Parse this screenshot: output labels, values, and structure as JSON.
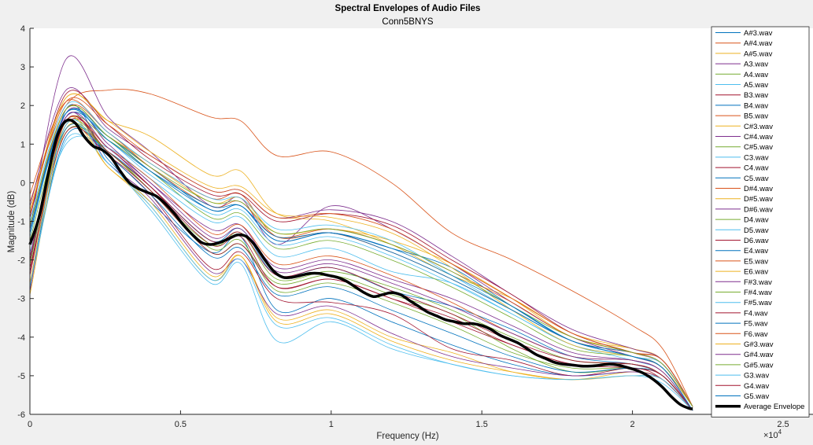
{
  "chart_data": {
    "type": "line",
    "title": "Spectral Envelopes of Audio Files",
    "subtitle": "Conn5BNYS",
    "xlabel": "Frequency (Hz)",
    "ylabel": "Magnitude (dB)",
    "xlim": [
      0,
      25000
    ],
    "ylim": [
      -6,
      4
    ],
    "x_exponent_label": "×10",
    "x_exponent_power": "4",
    "x_tick_labels": [
      "0",
      "0.5",
      "1",
      "1.5",
      "2",
      "2.5"
    ],
    "y_tick_labels": [
      "4",
      "3",
      "2",
      "1",
      "0",
      "-1",
      "-2",
      "-3",
      "-4",
      "-5",
      "-6"
    ],
    "grid": false,
    "legend_position": "right",
    "x": [
      0,
      1200,
      2600,
      4000,
      6000,
      7000,
      8200,
      10000,
      12000,
      14000,
      16000,
      18000,
      20000,
      21000,
      22000
    ],
    "series": [
      {
        "name": "A#3.wav",
        "color": "#0072bd",
        "values": [
          -2.8,
          1.9,
          0.6,
          -0.5,
          -1.8,
          -1.4,
          -3.3,
          -3.0,
          -3.6,
          -4.2,
          -4.7,
          -5.0,
          -4.9,
          -5.1,
          -5.9
        ]
      },
      {
        "name": "A#4.wav",
        "color": "#d95319",
        "values": [
          -0.5,
          2.0,
          2.4,
          2.3,
          1.7,
          1.6,
          0.7,
          0.8,
          0.0,
          -1.3,
          -2.0,
          -2.8,
          -3.7,
          -4.3,
          -5.8
        ]
      },
      {
        "name": "A#5.wav",
        "color": "#edb120",
        "values": [
          -0.8,
          2.2,
          1.6,
          1.2,
          0.2,
          0.3,
          -0.8,
          -1.0,
          -1.6,
          -2.4,
          -3.0,
          -3.9,
          -4.3,
          -4.6,
          -5.8
        ]
      },
      {
        "name": "A3.wav",
        "color": "#7e2f8e",
        "values": [
          -1.2,
          3.2,
          1.7,
          0.8,
          -0.6,
          -0.4,
          -1.6,
          -0.6,
          -1.2,
          -2.1,
          -3.1,
          -4.0,
          -4.5,
          -4.8,
          -5.8
        ]
      },
      {
        "name": "A4.wav",
        "color": "#77ac30",
        "values": [
          -2.0,
          1.4,
          0.8,
          -0.2,
          -1.8,
          -1.6,
          -2.6,
          -2.4,
          -2.9,
          -3.4,
          -4.3,
          -4.9,
          -4.8,
          -5.0,
          -5.9
        ]
      },
      {
        "name": "A5.wav",
        "color": "#4dbeee",
        "values": [
          -1.8,
          1.0,
          0.9,
          0.1,
          -1.0,
          -0.9,
          -1.9,
          -1.7,
          -2.3,
          -2.6,
          -3.4,
          -4.2,
          -4.6,
          -4.9,
          -5.9
        ]
      },
      {
        "name": "B3.wav",
        "color": "#a2142f",
        "values": [
          -2.4,
          1.6,
          0.7,
          -0.3,
          -2.2,
          -1.8,
          -3.0,
          -3.1,
          -3.4,
          -4.3,
          -4.6,
          -5.0,
          -4.8,
          -5.1,
          -5.9
        ]
      },
      {
        "name": "B4.wav",
        "color": "#0072bd",
        "values": [
          -2.6,
          1.2,
          0.8,
          -0.1,
          -1.5,
          -1.2,
          -2.4,
          -2.2,
          -2.8,
          -3.2,
          -3.8,
          -4.5,
          -4.7,
          -5.0,
          -5.9
        ]
      },
      {
        "name": "B5.wav",
        "color": "#d95319",
        "values": [
          -0.3,
          2.1,
          1.3,
          0.5,
          -0.4,
          -0.3,
          -1.4,
          -1.3,
          -1.8,
          -2.5,
          -3.3,
          -4.1,
          -4.4,
          -4.6,
          -5.8
        ]
      },
      {
        "name": "C#3.wav",
        "color": "#edb120",
        "values": [
          -2.9,
          1.4,
          0.4,
          -0.6,
          -2.5,
          -1.9,
          -3.5,
          -3.3,
          -4.0,
          -4.4,
          -4.9,
          -5.1,
          -4.9,
          -5.1,
          -5.9
        ]
      },
      {
        "name": "C#4.wav",
        "color": "#7e2f8e",
        "values": [
          -2.1,
          1.8,
          1.0,
          0.0,
          -1.2,
          -1.1,
          -2.2,
          -2.0,
          -2.5,
          -3.0,
          -3.7,
          -4.4,
          -4.6,
          -4.9,
          -5.9
        ]
      },
      {
        "name": "C#5.wav",
        "color": "#77ac30",
        "values": [
          -1.5,
          1.6,
          1.1,
          0.3,
          -0.9,
          -0.8,
          -1.7,
          -1.5,
          -2.0,
          -2.7,
          -3.5,
          -4.3,
          -4.5,
          -4.8,
          -5.9
        ]
      },
      {
        "name": "C3.wav",
        "color": "#4dbeee",
        "values": [
          -2.7,
          1.1,
          0.5,
          -0.7,
          -2.6,
          -2.1,
          -4.1,
          -3.6,
          -4.3,
          -4.7,
          -5.0,
          -5.1,
          -5.0,
          -5.2,
          -5.9
        ]
      },
      {
        "name": "C4.wav",
        "color": "#a2142f",
        "values": [
          -2.3,
          1.5,
          0.9,
          -0.1,
          -1.6,
          -1.4,
          -2.7,
          -2.5,
          -3.0,
          -3.6,
          -4.2,
          -4.7,
          -4.7,
          -5.0,
          -5.9
        ]
      },
      {
        "name": "C5.wav",
        "color": "#0072bd",
        "values": [
          -1.3,
          1.7,
          1.2,
          0.4,
          -0.7,
          -0.6,
          -1.5,
          -1.3,
          -1.7,
          -2.2,
          -3.2,
          -4.1,
          -4.4,
          -4.7,
          -5.8
        ]
      },
      {
        "name": "D#4.wav",
        "color": "#d95319",
        "values": [
          -1.9,
          1.6,
          0.9,
          0.1,
          -1.3,
          -1.1,
          -2.1,
          -1.9,
          -2.4,
          -3.1,
          -3.9,
          -4.5,
          -4.6,
          -4.9,
          -5.9
        ]
      },
      {
        "name": "D#5.wav",
        "color": "#edb120",
        "values": [
          -1.1,
          1.9,
          1.2,
          0.5,
          -0.5,
          -0.4,
          -1.3,
          -1.2,
          -1.5,
          -2.1,
          -3.0,
          -4.0,
          -4.3,
          -4.6,
          -5.8
        ]
      },
      {
        "name": "D#6.wav",
        "color": "#7e2f8e",
        "values": [
          -0.6,
          2.4,
          1.4,
          0.7,
          -0.2,
          -0.2,
          -0.9,
          -0.7,
          -1.0,
          -1.9,
          -2.9,
          -3.8,
          -4.3,
          -4.6,
          -5.8
        ]
      },
      {
        "name": "D4.wav",
        "color": "#77ac30",
        "values": [
          -2.2,
          1.3,
          0.8,
          -0.2,
          -1.7,
          -1.5,
          -2.8,
          -2.6,
          -3.1,
          -3.7,
          -4.4,
          -4.8,
          -4.8,
          -5.0,
          -5.9
        ]
      },
      {
        "name": "D5.wav",
        "color": "#4dbeee",
        "values": [
          -1.4,
          1.8,
          1.1,
          0.2,
          -0.8,
          -0.7,
          -1.6,
          -1.4,
          -1.9,
          -2.6,
          -3.4,
          -4.2,
          -4.5,
          -4.8,
          -5.9
        ]
      },
      {
        "name": "D6.wav",
        "color": "#a2142f",
        "values": [
          -0.9,
          2.3,
          1.5,
          0.6,
          -0.3,
          -0.3,
          -1.0,
          -0.8,
          -1.1,
          -2.0,
          -2.9,
          -3.9,
          -4.4,
          -4.7,
          -5.8
        ]
      },
      {
        "name": "E4.wav",
        "color": "#0072bd",
        "values": [
          -2.0,
          1.4,
          0.7,
          -0.3,
          -1.9,
          -1.7,
          -2.9,
          -2.7,
          -3.3,
          -3.9,
          -4.5,
          -4.9,
          -4.8,
          -5.0,
          -5.9
        ]
      },
      {
        "name": "E5.wav",
        "color": "#d95319",
        "values": [
          -1.2,
          1.9,
          1.3,
          0.4,
          -0.6,
          -0.5,
          -1.4,
          -1.2,
          -1.6,
          -2.3,
          -3.1,
          -4.0,
          -4.4,
          -4.7,
          -5.8
        ]
      },
      {
        "name": "E6.wav",
        "color": "#edb120",
        "values": [
          -0.7,
          2.2,
          1.6,
          0.8,
          -0.1,
          -0.1,
          -0.8,
          -0.9,
          -1.3,
          -2.2,
          -3.3,
          -4.2,
          -4.5,
          -4.8,
          -5.8
        ]
      },
      {
        "name": "F#3.wav",
        "color": "#7e2f8e",
        "values": [
          -2.8,
          1.7,
          0.5,
          -0.4,
          -2.3,
          -2.0,
          -3.4,
          -3.2,
          -3.9,
          -4.5,
          -4.8,
          -5.0,
          -4.9,
          -5.1,
          -5.9
        ]
      },
      {
        "name": "F#4.wav",
        "color": "#77ac30",
        "values": [
          -2.1,
          1.5,
          0.8,
          -0.2,
          -1.6,
          -1.3,
          -2.5,
          -2.3,
          -2.7,
          -3.3,
          -4.0,
          -4.6,
          -4.7,
          -5.0,
          -5.9
        ]
      },
      {
        "name": "F#5.wav",
        "color": "#4dbeee",
        "values": [
          -1.0,
          2.0,
          1.3,
          0.5,
          -0.4,
          -0.4,
          -1.2,
          -1.1,
          -1.5,
          -2.4,
          -3.3,
          -4.1,
          -4.5,
          -4.7,
          -5.8
        ]
      },
      {
        "name": "F4.wav",
        "color": "#a2142f",
        "values": [
          -2.2,
          1.3,
          0.7,
          -0.2,
          -1.8,
          -1.6,
          -2.7,
          -2.5,
          -3.0,
          -3.5,
          -4.2,
          -4.7,
          -4.8,
          -5.0,
          -5.9
        ]
      },
      {
        "name": "F5.wav",
        "color": "#0072bd",
        "values": [
          -1.3,
          1.8,
          1.2,
          0.3,
          -0.7,
          -0.6,
          -1.5,
          -1.3,
          -1.8,
          -2.5,
          -3.3,
          -4.1,
          -4.5,
          -4.8,
          -5.9
        ]
      },
      {
        "name": "F6.wav",
        "color": "#d95319",
        "values": [
          -0.8,
          2.1,
          1.5,
          0.7,
          -0.2,
          -0.2,
          -0.9,
          -0.8,
          -1.2,
          -2.1,
          -3.0,
          -3.9,
          -4.4,
          -4.6,
          -5.8
        ]
      },
      {
        "name": "G#3.wav",
        "color": "#edb120",
        "values": [
          -2.6,
          1.6,
          0.4,
          -0.5,
          -2.4,
          -1.9,
          -3.6,
          -3.4,
          -4.1,
          -4.6,
          -4.9,
          -5.1,
          -5.0,
          -5.1,
          -5.9
        ]
      },
      {
        "name": "G#4.wav",
        "color": "#7e2f8e",
        "values": [
          -1.9,
          1.7,
          0.9,
          0.0,
          -1.4,
          -1.2,
          -2.3,
          -2.1,
          -2.6,
          -3.2,
          -3.9,
          -4.5,
          -4.6,
          -4.9,
          -5.9
        ]
      },
      {
        "name": "G#5.wav",
        "color": "#77ac30",
        "values": [
          -1.1,
          1.9,
          1.2,
          0.4,
          -0.5,
          -0.5,
          -1.3,
          -1.2,
          -1.6,
          -2.3,
          -3.2,
          -4.0,
          -4.4,
          -4.7,
          -5.8
        ]
      },
      {
        "name": "G3.wav",
        "color": "#4dbeee",
        "values": [
          -2.7,
          1.5,
          0.5,
          -0.6,
          -2.5,
          -2.0,
          -3.7,
          -3.5,
          -4.2,
          -4.7,
          -5.0,
          -5.1,
          -5.0,
          -5.1,
          -5.9
        ]
      },
      {
        "name": "G4.wav",
        "color": "#a2142f",
        "values": [
          -2.0,
          1.6,
          0.8,
          -0.1,
          -1.5,
          -1.3,
          -2.4,
          -2.2,
          -2.8,
          -3.4,
          -4.1,
          -4.6,
          -4.7,
          -5.0,
          -5.9
        ]
      },
      {
        "name": "G5.wav",
        "color": "#0072bd",
        "values": [
          -1.2,
          1.8,
          1.1,
          0.3,
          -0.6,
          -0.6,
          -1.4,
          -1.3,
          -1.7,
          -2.4,
          -3.2,
          -4.1,
          -4.5,
          -4.8,
          -5.9
        ]
      }
    ],
    "average": {
      "name": "Average Envelope",
      "color": "#000000",
      "x": [
        0,
        300,
        600,
        900,
        1200,
        1500,
        1800,
        2100,
        2400,
        2700,
        3000,
        3300,
        3600,
        3900,
        4200,
        4500,
        4800,
        5100,
        5400,
        5700,
        6000,
        6300,
        6600,
        6900,
        7200,
        7500,
        7800,
        8100,
        8400,
        8700,
        9000,
        9300,
        9600,
        9900,
        10200,
        10500,
        10800,
        11100,
        11400,
        11700,
        12000,
        12300,
        12600,
        12900,
        13200,
        13500,
        13800,
        14100,
        14400,
        14700,
        15000,
        15300,
        15600,
        15900,
        16200,
        16500,
        16800,
        17100,
        17400,
        17700,
        18000,
        18300,
        18600,
        18900,
        19200,
        19500,
        19800,
        20100,
        20400,
        20700,
        21000,
        21300,
        21600,
        21900,
        22000
      ],
      "values": [
        -1.6,
        -0.9,
        0.2,
        1.2,
        1.6,
        1.55,
        1.2,
        0.95,
        0.85,
        0.65,
        0.3,
        0.0,
        -0.15,
        -0.25,
        -0.35,
        -0.55,
        -0.8,
        -1.1,
        -1.35,
        -1.55,
        -1.6,
        -1.55,
        -1.45,
        -1.35,
        -1.4,
        -1.65,
        -2.0,
        -2.3,
        -2.45,
        -2.45,
        -2.4,
        -2.35,
        -2.35,
        -2.4,
        -2.45,
        -2.55,
        -2.7,
        -2.85,
        -2.95,
        -2.9,
        -2.85,
        -2.9,
        -3.05,
        -3.2,
        -3.35,
        -3.45,
        -3.55,
        -3.6,
        -3.65,
        -3.65,
        -3.7,
        -3.8,
        -3.95,
        -4.05,
        -4.15,
        -4.3,
        -4.45,
        -4.55,
        -4.65,
        -4.7,
        -4.72,
        -4.75,
        -4.75,
        -4.73,
        -4.7,
        -4.72,
        -4.78,
        -4.85,
        -4.95,
        -5.1,
        -5.3,
        -5.55,
        -5.75,
        -5.85,
        -5.85
      ]
    }
  }
}
